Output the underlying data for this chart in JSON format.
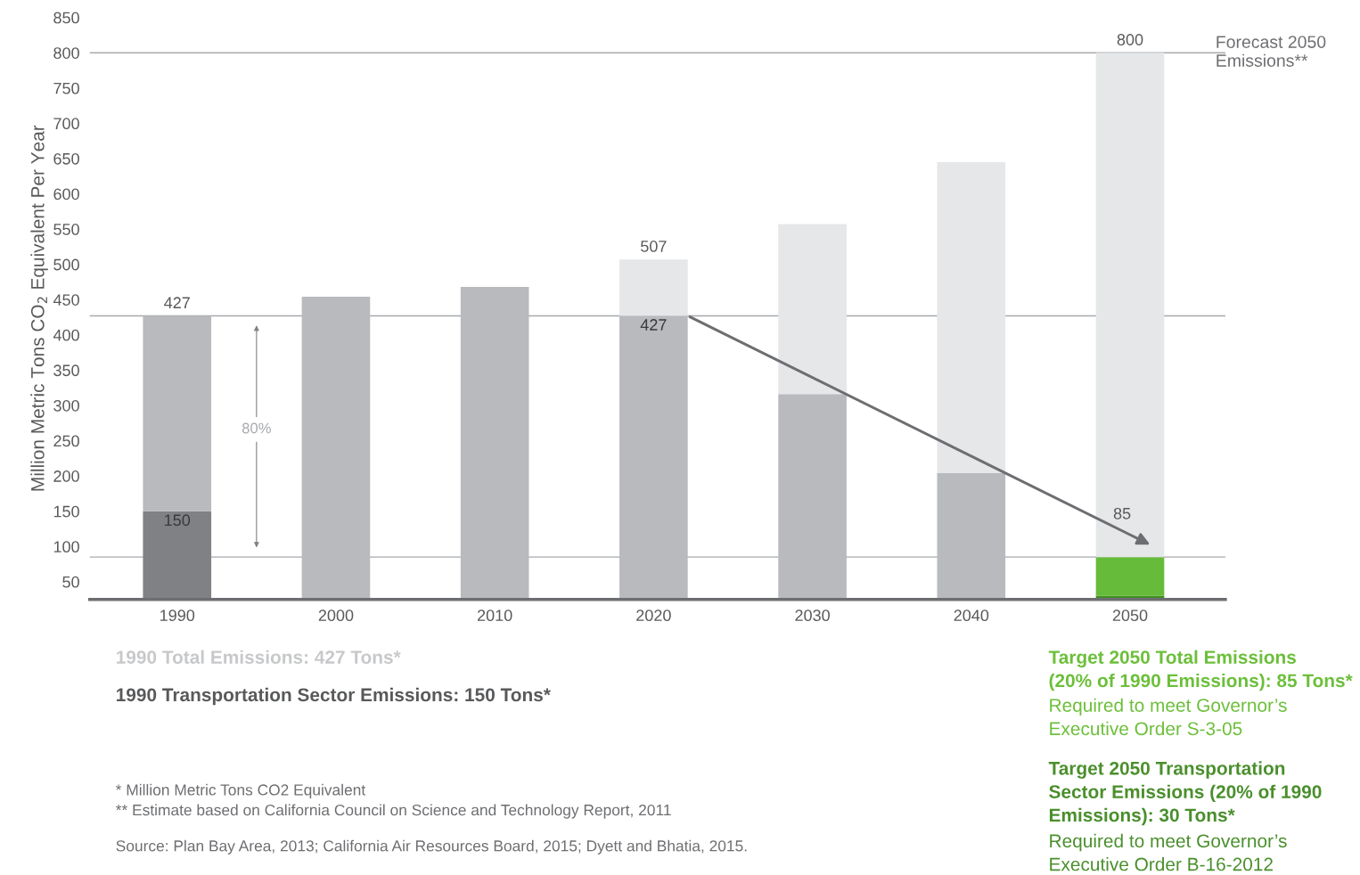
{
  "chart_data": {
    "type": "bar",
    "stacked": true,
    "ylabel": "Million Metric Tons CO$_{2}$ Equivalent Per Year",
    "categories": [
      "1990",
      "2000",
      "2010",
      "2020",
      "2030",
      "2040",
      "2050"
    ],
    "series": [
      {
        "colors": [
          "#808184",
          "#b8babd",
          "#b8babd",
          "#b8babd",
          "#b8babd",
          "#b8babd",
          "#3f8f24"
        ],
        "values": [
          150,
          454,
          468,
          427,
          316,
          204,
          30
        ],
        "value_labels": [
          "150",
          null,
          null,
          "427",
          null,
          null,
          null
        ]
      },
      {
        "colors": [
          "#b8babd",
          "#b8babd",
          "#b8babd",
          "#b8babd",
          "#b8babd",
          "#b8babd",
          "#66bb3a"
        ],
        "values": [
          277,
          null,
          null,
          null,
          null,
          null,
          55
        ]
      },
      {
        "colors": [
          "#e6e7e8",
          "#e6e7e8",
          "#e6e7e8",
          "#e6e7e8",
          "#e6e7e8",
          "#e6e7e8",
          "#e6e7e8"
        ],
        "values": [
          null,
          null,
          null,
          80,
          241,
          441,
          715
        ]
      }
    ],
    "totals": [
      "427",
      null,
      null,
      "507",
      null,
      null,
      "800"
    ],
    "ylim": [
      25,
      850
    ],
    "yticks": [
      50,
      100,
      150,
      200,
      250,
      300,
      350,
      400,
      450,
      500,
      550,
      600,
      650,
      700,
      750,
      800,
      850
    ],
    "grid": false,
    "ref_lines": [
      {
        "axis": "y",
        "value": 800,
        "label": "Forecast 2050\nEmissions**",
        "color": "#a7a9ac"
      },
      {
        "axis": "y",
        "value": 427,
        "color": "#a7a9ac"
      },
      {
        "axis": "y",
        "value": 85,
        "color": "#a7a9ac"
      }
    ],
    "annotations": [
      "80%",
      {
        "text": "85",
        "x": "2050",
        "y": 85
      },
      "1990 Total Emissions: 427 Tons*",
      "1990 Transportation Sector Emissions: 150 Tons*",
      "* Million Metric Tons CO2 Equivalent",
      "** Estimate based on California Council on Science and Technology Report, 2011",
      "Source: Plan Bay Area, 2013; California Air Resources Board, 2015; Dyett and Bhatia, 2015.",
      "Target 2050 Total Emissions\n(20% of 1990 Emissions): 85 Tons*",
      "Required to meet Governor’s\nExecutive Order S-3-05",
      "Target 2050 Transportation\nSector Emissions (20% of 1990\nEmissions): 30 Tons*",
      "Required to meet Governor’s\nExecutive Order B-16-2012"
    ]
  }
}
